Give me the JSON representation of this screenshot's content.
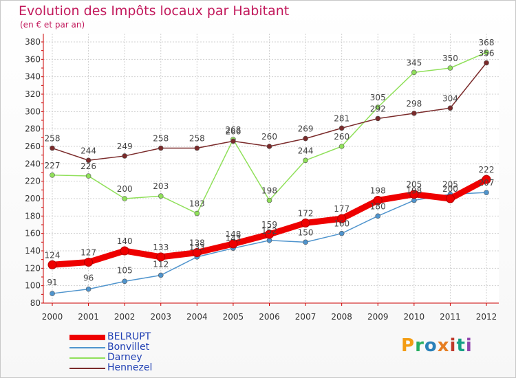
{
  "header": {
    "title": "Evolution des Impôts locaux par Habitant",
    "subtitle": "(en € et par an)"
  },
  "logo": {
    "letters": [
      "P",
      "r",
      "o",
      "x",
      "i",
      "t",
      "i"
    ],
    "colors": [
      "#f39c12",
      "#27ae60",
      "#2980b9",
      "#e67e22",
      "#c0392b",
      "#16a085",
      "#8e44ad"
    ]
  },
  "chart_data": {
    "type": "line",
    "x": [
      "2000",
      "2001",
      "2002",
      "2003",
      "2004",
      "2005",
      "2006",
      "2007",
      "2008",
      "2009",
      "2010",
      "2011",
      "2012"
    ],
    "ylim": [
      80,
      380
    ],
    "yticks": [
      80,
      100,
      120,
      140,
      160,
      180,
      200,
      220,
      240,
      260,
      280,
      300,
      320,
      340,
      360,
      380
    ],
    "grid": true,
    "series": [
      {
        "name": "BELRUPT",
        "color": "#ee0000",
        "values": [
          124,
          127,
          140,
          133,
          138,
          148,
          159,
          172,
          177,
          198,
          205,
          200,
          222
        ]
      },
      {
        "name": "Bonvillet",
        "color": "#4f94cd",
        "values": [
          91,
          96,
          105,
          112,
          133,
          143,
          152,
          150,
          160,
          180,
          198,
          205,
          207
        ]
      },
      {
        "name": "Darney",
        "color": "#90e05a",
        "values": [
          227,
          226,
          200,
          203,
          183,
          268,
          198,
          244,
          260,
          305,
          345,
          350,
          368
        ]
      },
      {
        "name": "Hennezel",
        "color": "#7a2a2a",
        "values": [
          258,
          244,
          249,
          258,
          258,
          266,
          260,
          269,
          281,
          292,
          298,
          304,
          356
        ]
      }
    ]
  }
}
